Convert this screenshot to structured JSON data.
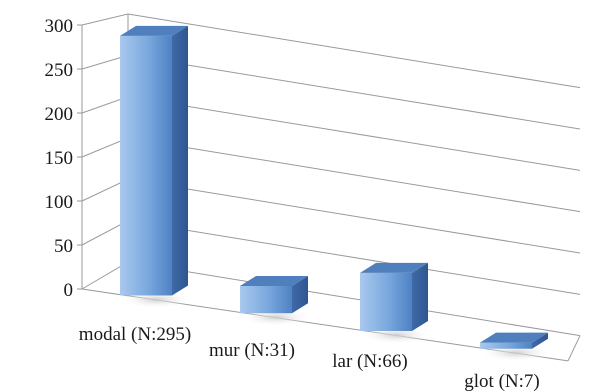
{
  "chart_data": {
    "type": "bar",
    "style": "3d-column",
    "categories": [
      "modal (N:295)",
      "mur (N:31)",
      "lar (N:66)",
      "glot (N:7)"
    ],
    "values": [
      295,
      31,
      66,
      7
    ],
    "ylim": [
      0,
      300
    ],
    "yticks": [
      "0",
      "50",
      "100",
      "150",
      "200",
      "250",
      "300"
    ],
    "grid": true,
    "legend": "none",
    "bar_color": "#6f9fd8",
    "title": "",
    "xlabel": "",
    "ylabel": ""
  }
}
